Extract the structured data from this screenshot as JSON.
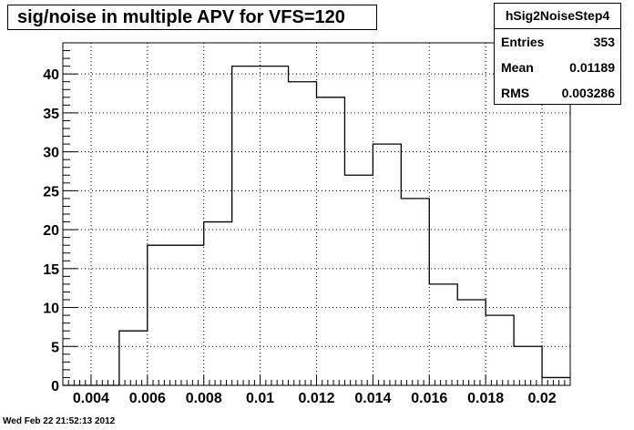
{
  "title": "sig/noise in multiple APV for VFS=120",
  "stats": {
    "name": "hSig2NoiseStep4",
    "entries_label": "Entries",
    "entries_value": "353",
    "mean_label": "Mean",
    "mean_value": "0.01189",
    "rms_label": "RMS",
    "rms_value": "0.003286"
  },
  "timestamp": "Wed Feb 22 21:52:13 2012",
  "chart_data": {
    "type": "bar",
    "histogram": true,
    "title": "sig/noise in multiple APV for VFS=120",
    "xlabel": "",
    "ylabel": "",
    "xlim": [
      0.003,
      0.021
    ],
    "ylim": [
      0,
      44
    ],
    "grid": true,
    "bin_edges": [
      0.003,
      0.004,
      0.005,
      0.006,
      0.007,
      0.008,
      0.009,
      0.01,
      0.011,
      0.012,
      0.013,
      0.014,
      0.015,
      0.016,
      0.017,
      0.018,
      0.019,
      0.02,
      0.021
    ],
    "values": [
      0,
      0,
      7,
      18,
      18,
      21,
      41,
      41,
      39,
      37,
      27,
      31,
      24,
      13,
      11,
      9,
      5,
      1
    ],
    "x_ticks": [
      0.004,
      0.006,
      0.008,
      0.01,
      0.012,
      0.014,
      0.016,
      0.018,
      0.02
    ],
    "x_tick_labels": [
      "0.004",
      "0.006",
      "0.008",
      "0.01",
      "0.012",
      "0.014",
      "0.016",
      "0.018",
      "0.02"
    ],
    "y_ticks": [
      0,
      5,
      10,
      15,
      20,
      25,
      30,
      35,
      40
    ],
    "y_tick_labels": [
      "0",
      "5",
      "10",
      "15",
      "20",
      "25",
      "30",
      "35",
      "40"
    ],
    "line_color": "#000000"
  }
}
